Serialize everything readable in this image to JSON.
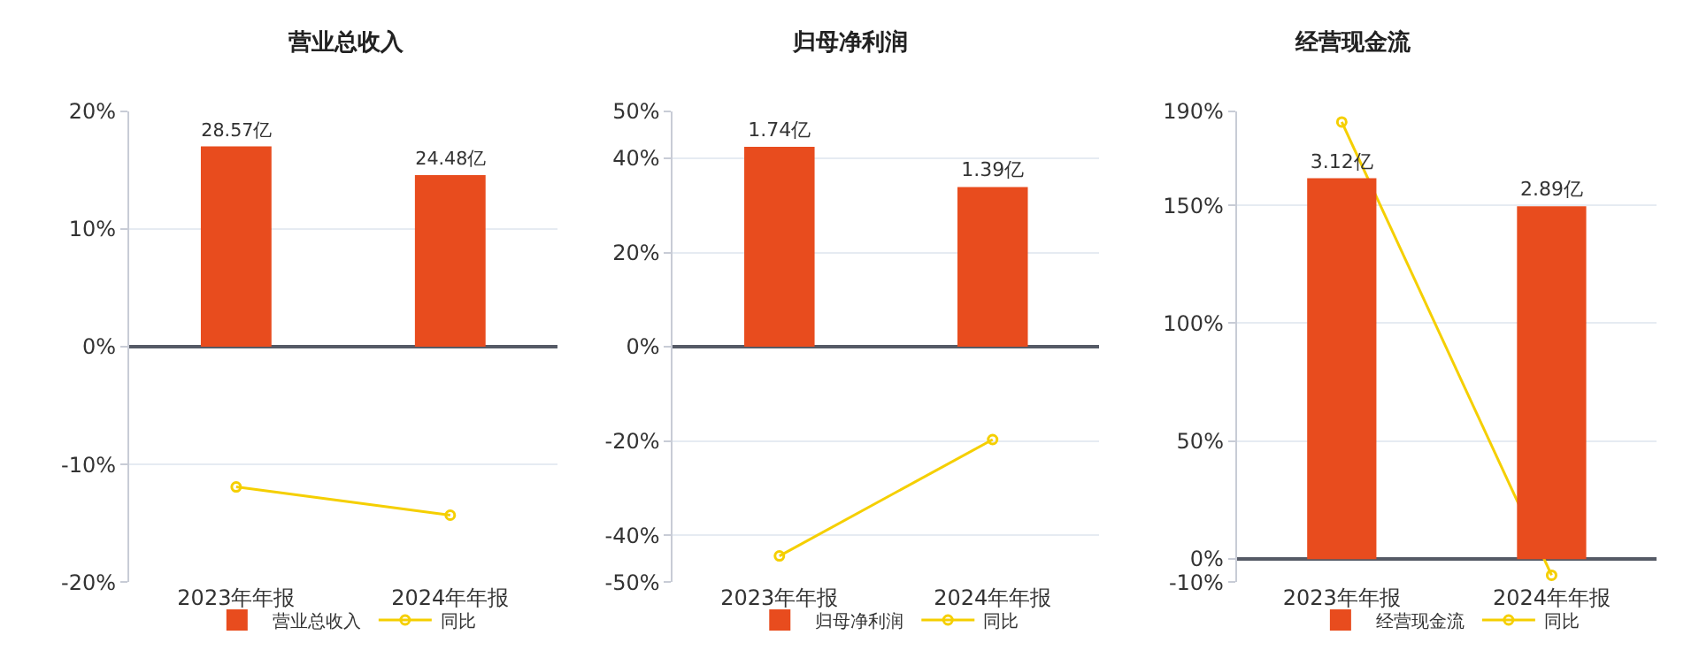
{
  "chart_data": [
    {
      "type": "bar",
      "title": "营业总收入",
      "categories": [
        "2023年年报",
        "2024年年报"
      ],
      "series": [
        {
          "name": "营业总收入",
          "axis": "y2",
          "color": "#e84c1e",
          "values": [
            28.57,
            24.48
          ],
          "value_labels": [
            "28.57亿",
            "24.48亿"
          ]
        },
        {
          "name": "同比",
          "type": "line",
          "color": "#f5cf00",
          "values": [
            -11.9,
            -14.3
          ]
        }
      ],
      "ylim": [
        -20,
        20
      ],
      "yticks": [
        {
          "value": -20,
          "label": "-20%"
        },
        {
          "value": -10,
          "label": "-10%"
        },
        {
          "value": 0,
          "label": "0%"
        },
        {
          "value": 10,
          "label": "10%"
        },
        {
          "value": 20,
          "label": "20%"
        }
      ],
      "y2lim": [
        -33.6,
        33.6
      ],
      "grid": "y",
      "legend": "bottom",
      "marker": "circle",
      "line_style": "solid"
    },
    {
      "type": "bar",
      "title": "归母净利润",
      "categories": [
        "2023年年报",
        "2024年年报"
      ],
      "series": [
        {
          "name": "归母净利润",
          "axis": "y2",
          "color": "#e84c1e",
          "values": [
            1.74,
            1.39
          ],
          "value_labels": [
            "1.74亿",
            "1.39亿"
          ]
        },
        {
          "name": "同比",
          "type": "line",
          "color": "#f5cf00",
          "values": [
            -44.4,
            -19.7
          ]
        }
      ],
      "ylim": [
        -50,
        50
      ],
      "yticks": [
        {
          "value": -50,
          "label": "-50%"
        },
        {
          "value": -40,
          "label": "-40%"
        },
        {
          "value": -20,
          "label": "-20%"
        },
        {
          "value": 0,
          "label": "0%"
        },
        {
          "value": 20,
          "label": "20%"
        },
        {
          "value": 40,
          "label": "40%"
        },
        {
          "value": 50,
          "label": "50%"
        }
      ],
      "y2lim": [
        -2.05,
        2.05
      ],
      "grid": "y",
      "legend": "bottom",
      "marker": "circle",
      "line_style": "solid"
    },
    {
      "type": "bar",
      "title": "经营现金流",
      "categories": [
        "2023年年报",
        "2024年年报"
      ],
      "series": [
        {
          "name": "经营现金流",
          "axis": "y2",
          "color": "#e84c1e",
          "values": [
            3.12,
            2.89
          ],
          "value_labels": [
            "3.12亿",
            "2.89亿"
          ]
        },
        {
          "name": "同比",
          "type": "line",
          "color": "#f5cf00",
          "values": [
            185.4,
            -7.0
          ]
        }
      ],
      "ylim": [
        -10,
        190
      ],
      "yticks": [
        {
          "value": -10,
          "label": "-10%"
        },
        {
          "value": 0,
          "label": "0%"
        },
        {
          "value": 50,
          "label": "50%"
        },
        {
          "value": 100,
          "label": "100%"
        },
        {
          "value": 150,
          "label": "150%"
        },
        {
          "value": 190,
          "label": "190%"
        }
      ],
      "y2lim": [
        -0.19,
        3.67
      ],
      "grid": "y",
      "legend": "bottom",
      "marker": "circle",
      "line_style": "solid"
    }
  ]
}
